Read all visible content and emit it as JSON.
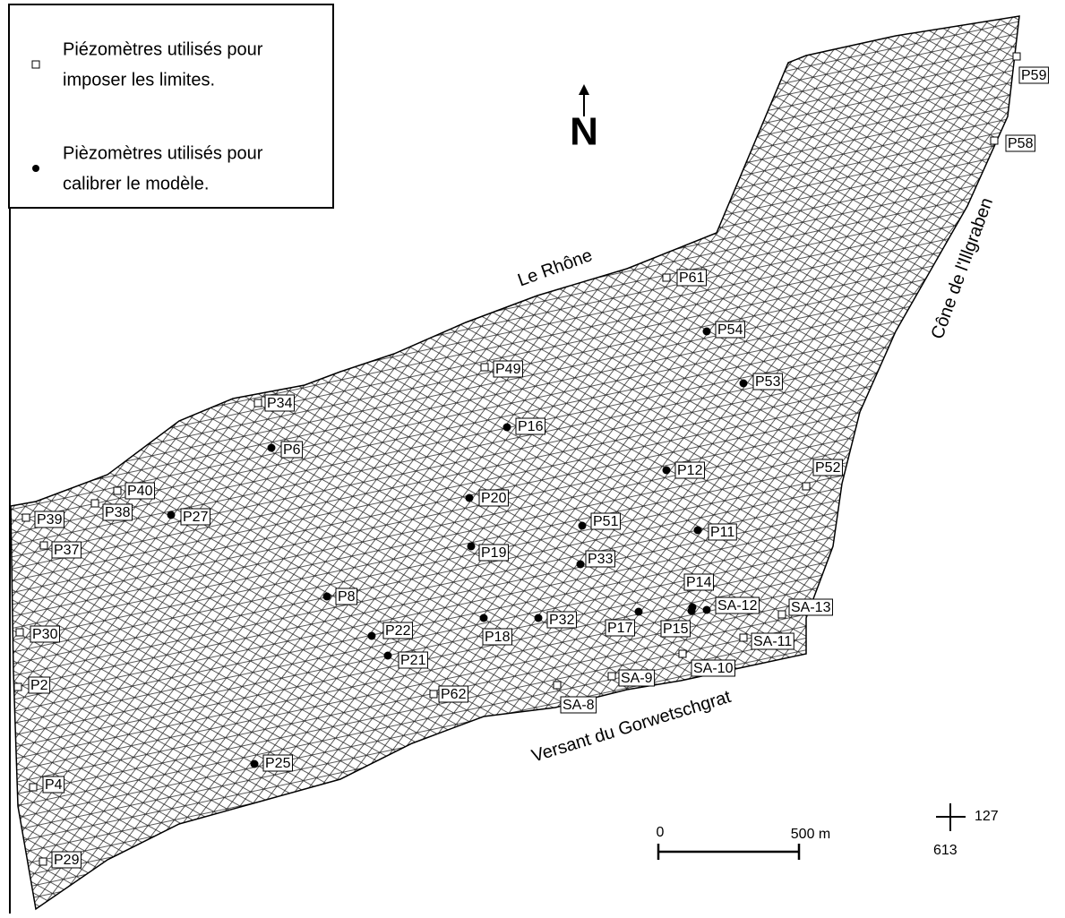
{
  "legend": {
    "boundary": [
      "Piézomètres utilisés pour",
      "imposer les limites."
    ],
    "calibration": [
      "Pièzomètres utilisés pour",
      "calibrer le modèle."
    ]
  },
  "north": "N",
  "features": {
    "river": "Le Rhône",
    "cone": "Cône de l'Illgraben",
    "slope": "Versant du Gorwetschgrat"
  },
  "boundary_wells": [
    "P59",
    "P58",
    "P61",
    "P49",
    "P34",
    "P40",
    "P38",
    "P39",
    "P37",
    "P30",
    "P2",
    "P4",
    "P29",
    "P62",
    "SA-8",
    "SA-9",
    "SA-10",
    "SA-11",
    "SA-13",
    "P52"
  ],
  "calibration_wells": [
    "P54",
    "P53",
    "P16",
    "P6",
    "P12",
    "P20",
    "P27",
    "P51",
    "P11",
    "P19",
    "P33",
    "P8",
    "P14",
    "SA-12",
    "P17",
    "P15",
    "P32",
    "P18",
    "P22",
    "P21",
    "P25"
  ],
  "scale": {
    "start": "0",
    "end": "500 m"
  },
  "coordinates": {
    "x": "127",
    "y": "613"
  }
}
